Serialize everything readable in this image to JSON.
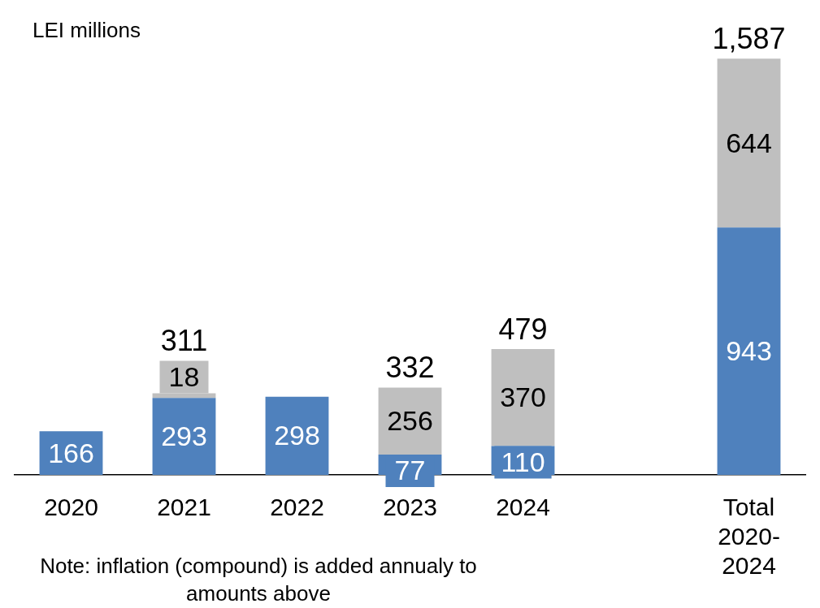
{
  "chart_data": {
    "type": "bar",
    "stacked": true,
    "ylabel": "LEI millions",
    "categories": [
      "2020",
      "2021",
      "2022",
      "2023",
      "2024",
      null,
      "Total 2020-2024"
    ],
    "series": [
      {
        "color": "#4f81bd",
        "values": [
          166,
          293,
          298,
          77,
          110,
          null,
          943
        ]
      },
      {
        "color": "#bfbfbf",
        "values": [
          null,
          18,
          null,
          256,
          370,
          null,
          644
        ]
      }
    ],
    "data_labels": true,
    "totals": [
      null,
      "311",
      null,
      "332",
      "479",
      null,
      "1,587"
    ],
    "annotations": [
      "Note: inflation (compound) is added annualy to amounts above"
    ],
    "grid": false,
    "legend": false
  }
}
